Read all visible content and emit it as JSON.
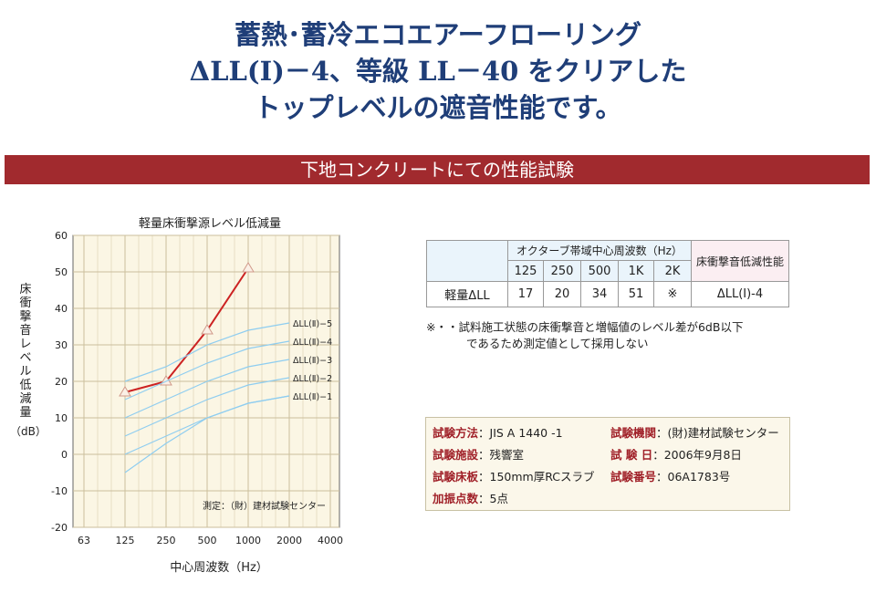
{
  "headline": {
    "line1": "蓄熱･蓄冷エコエアーフローリング",
    "line2": "ΔLL(Ⅰ)－4、等級 LL－40 をクリアした",
    "line3": "トップレベルの遮音性能です。"
  },
  "banner": "下地コンクリートにての性能試験",
  "chart": {
    "title": "軽量床衝撃源レベル低減量",
    "ylabel_chars": [
      "床",
      "衝",
      "撃",
      "音",
      "レ",
      "ベ",
      "ル",
      "低",
      "減",
      "量"
    ],
    "yunit": "（dB）",
    "xlabel": "中心周波数（Hz）",
    "note": "測定：（財）建材試験センター"
  },
  "chart_data": {
    "type": "line",
    "title": "軽量床衝撃源レベル低減量",
    "xlabel": "中心周波数（Hz）",
    "ylabel": "床衝撃音レベル低減量（dB）",
    "categories": [
      "63",
      "125",
      "250",
      "500",
      "1000",
      "2000",
      "4000"
    ],
    "y_ticks": [
      60,
      50,
      40,
      30,
      20,
      10,
      0,
      -10,
      -20
    ],
    "ylim": [
      -20,
      60
    ],
    "grid": true,
    "series": [
      {
        "name": "軽量ΔLL",
        "x": [
          "125",
          "250",
          "500",
          "1000"
        ],
        "values": [
          17,
          20,
          34,
          51
        ],
        "color": "#cc2222"
      },
      {
        "name": "ΔLL(Ⅱ)−5",
        "x": [
          "125",
          "250",
          "500",
          "1000",
          "2000"
        ],
        "values": [
          20,
          24,
          30,
          34,
          36
        ],
        "color": "#8ecdf0"
      },
      {
        "name": "ΔLL(Ⅱ)−4",
        "x": [
          "125",
          "250",
          "500",
          "1000",
          "2000"
        ],
        "values": [
          15,
          20,
          25,
          29,
          31
        ],
        "color": "#8ecdf0"
      },
      {
        "name": "ΔLL(Ⅱ)−3",
        "x": [
          "125",
          "250",
          "500",
          "1000",
          "2000"
        ],
        "values": [
          10,
          15,
          20,
          24,
          26
        ],
        "color": "#8ecdf0"
      },
      {
        "name": "ΔLL(Ⅱ)−2",
        "x": [
          "125",
          "250",
          "500",
          "1000",
          "2000"
        ],
        "values": [
          5,
          10,
          15,
          19,
          21
        ],
        "color": "#8ecdf0"
      },
      {
        "name": "ΔLL(Ⅱ)−1",
        "x": [
          "125",
          "250",
          "500",
          "1000",
          "2000"
        ],
        "values": [
          0,
          5,
          10,
          14,
          16
        ],
        "color": "#8ecdf0"
      },
      {
        "name": "",
        "x": [
          "125",
          "250",
          "500",
          "1000",
          "2000"
        ],
        "values": [
          -5,
          3,
          10,
          14,
          16
        ],
        "color": "#8ecdf0"
      }
    ]
  },
  "table": {
    "freq_header": "オクターブ帯域中心周波数（Hz）",
    "right_header": "床衝撃音低減性能",
    "freqs": [
      "125",
      "250",
      "500",
      "1K",
      "2K"
    ],
    "row_label": "軽量ΔLL",
    "values": [
      "17",
      "20",
      "34",
      "51",
      "※"
    ],
    "rating": "ΔLL(Ⅰ)-4"
  },
  "note": {
    "line1": "※・・試料施工状態の床衝撃音と増幅値のレベル差が6dB以下",
    "line2": "であるため測定値として採用しない"
  },
  "spec": [
    {
      "k": "試験方法",
      "v": "：JIS A 1440 -1"
    },
    {
      "k": "試験機関",
      "v": "：(財)建材試験センター"
    },
    {
      "k": "試験施設",
      "v": "：残響室"
    },
    {
      "k": "試 験 日",
      "v": "：2006年9月8日"
    },
    {
      "k": "試験床板",
      "v": "：150mm厚RCスラブ"
    },
    {
      "k": "試験番号",
      "v": "：06A1783号"
    },
    {
      "k": "加振点数",
      "v": "：5点"
    }
  ],
  "colors": {
    "headline": "#1f3e78",
    "banner": "#a12a2e",
    "plot_bg": "#fbf6e4",
    "measured_line": "#cc2222",
    "reference_lines": "#8ecdf0",
    "spec_key": "#a02028"
  }
}
